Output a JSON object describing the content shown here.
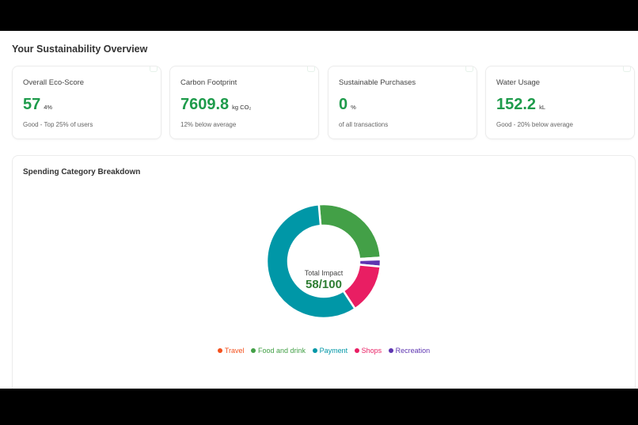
{
  "page": {
    "title": "Your Sustainability Overview"
  },
  "cards": [
    {
      "label": "Overall Eco-Score",
      "value": "57",
      "unit": "4%",
      "sub": "Good - Top 25% of users"
    },
    {
      "label": "Carbon Footprint",
      "value": "7609.8",
      "unit": "kg CO₂",
      "sub": "12% below average"
    },
    {
      "label": "Sustainable Purchases",
      "value": "0",
      "unit": "%",
      "sub": "of all transactions"
    },
    {
      "label": "Water Usage",
      "value": "152.2",
      "unit": "kL",
      "sub": "Good - 20% below average"
    }
  ],
  "breakdown": {
    "title": "Spending Category Breakdown",
    "center_label": "Total Impact",
    "center_value": "58/100",
    "legend": [
      {
        "label": "Travel",
        "color": "#f4511e"
      },
      {
        "label": "Food and drink",
        "color": "#43a047"
      },
      {
        "label": "Payment",
        "color": "#0097a7"
      },
      {
        "label": "Shops",
        "color": "#e91e63"
      },
      {
        "label": "Recreation",
        "color": "#5e35b1"
      }
    ]
  },
  "chart_data": {
    "type": "pie",
    "title": "Spending Category Breakdown",
    "categories": [
      "Travel",
      "Food and drink",
      "Payment",
      "Shops",
      "Recreation"
    ],
    "values": [
      0.5,
      25,
      57,
      14,
      2
    ],
    "center_text": "Total Impact 58/100"
  }
}
